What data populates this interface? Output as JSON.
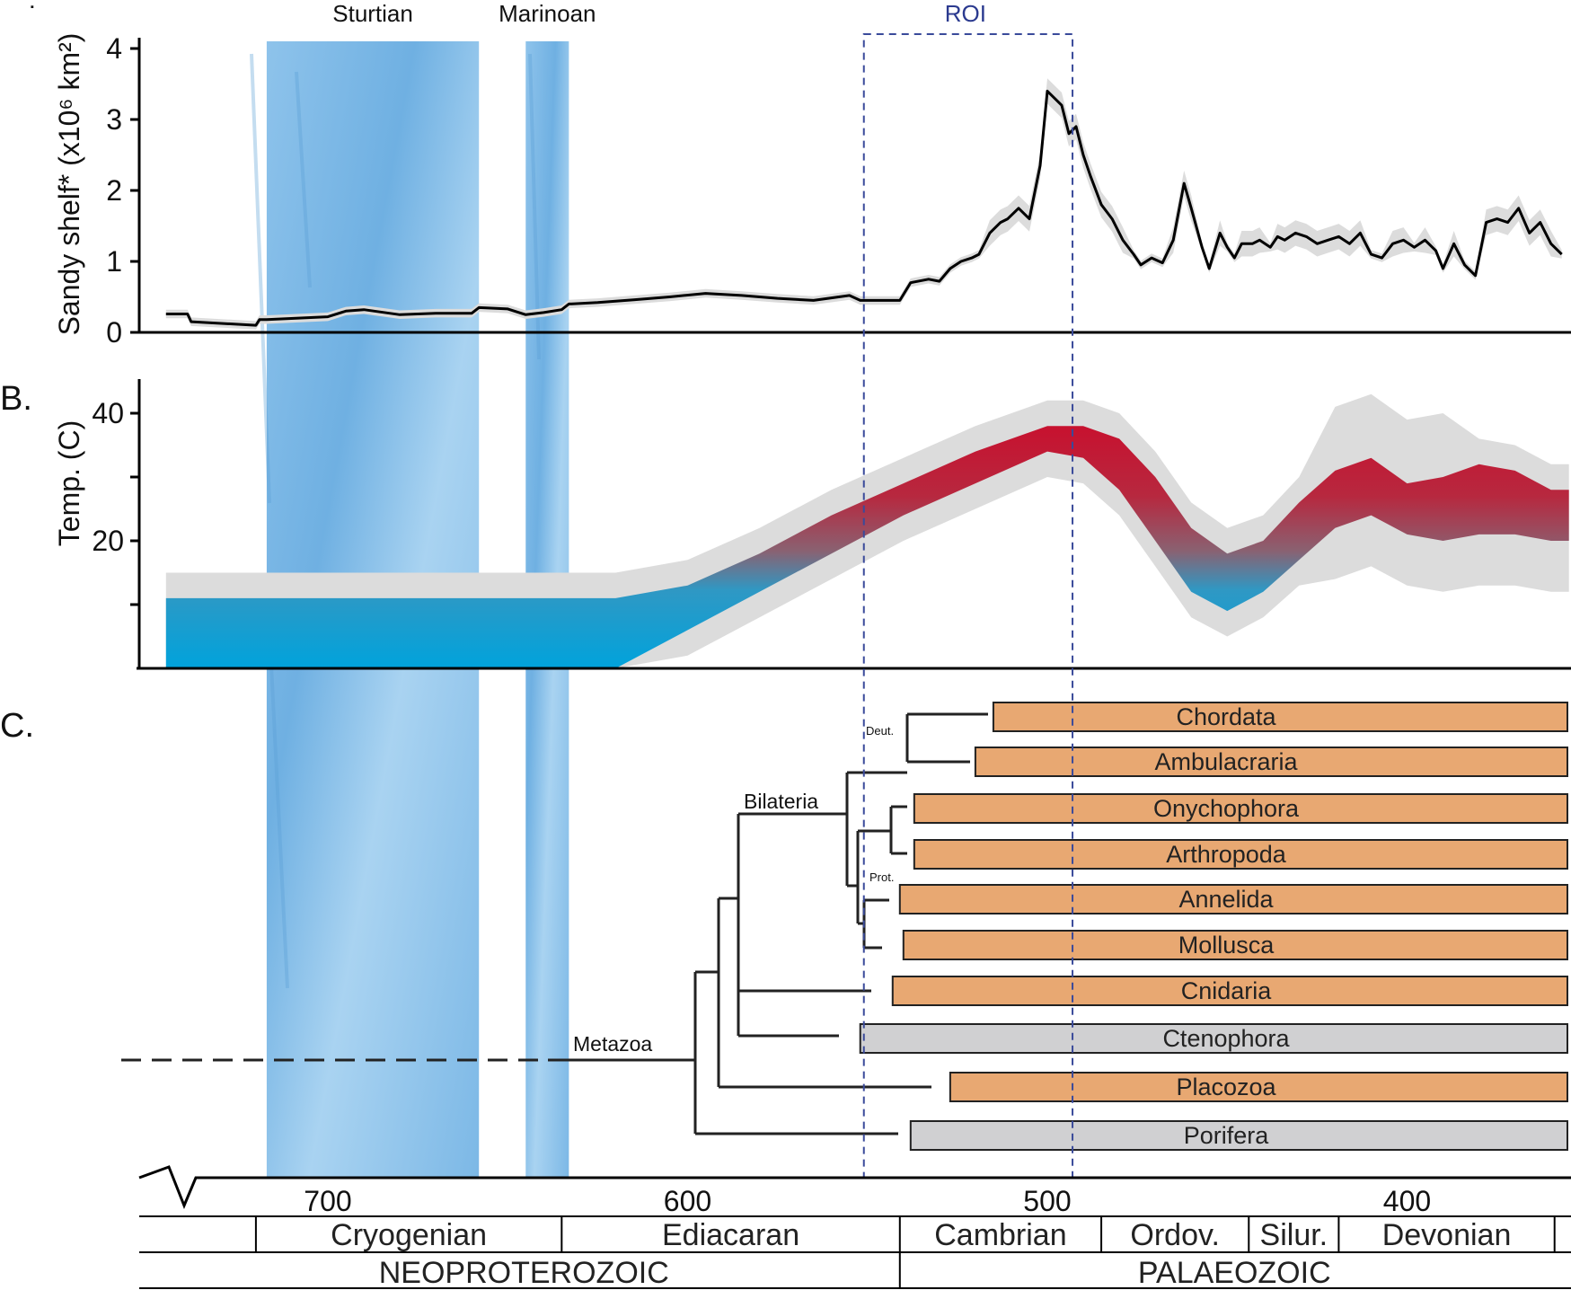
{
  "figure": {
    "stray_mark": "˙",
    "glaciations": [
      {
        "name": "Sturtian",
        "start_ma": 717,
        "end_ma": 658
      },
      {
        "name": "Marinoan",
        "start_ma": 645,
        "end_ma": 633
      }
    ],
    "roi": {
      "label": "ROI",
      "start_ma": 551,
      "end_ma": 493
    }
  },
  "chart_data": [
    {
      "type": "line",
      "panel": "A",
      "ylabel": "Sandy shelf* (x10⁶ km²)",
      "ylim": [
        0,
        4.2
      ],
      "yticks": [
        0,
        1,
        2,
        3,
        4
      ],
      "xlim": [
        745,
        355
      ],
      "series": [
        {
          "x": [
            745,
            739,
            738,
            720,
            719,
            717,
            700,
            695,
            690,
            680,
            670,
            660,
            658,
            650,
            645,
            640,
            635,
            633,
            625,
            615,
            605,
            595,
            585,
            575,
            565,
            555,
            552,
            548,
            541,
            538,
            533,
            530,
            527,
            524,
            521,
            519,
            516,
            513,
            511,
            508,
            505,
            502,
            500,
            498,
            496,
            494,
            492,
            490,
            488,
            485,
            482,
            479,
            476,
            474,
            471,
            468,
            465,
            462,
            460,
            457,
            455,
            452,
            450,
            448,
            446,
            443,
            441,
            438,
            436,
            434,
            431,
            428,
            425,
            422,
            419,
            416,
            413,
            410,
            407,
            404,
            401,
            398,
            395,
            392,
            390,
            387,
            384,
            381,
            378,
            375,
            372,
            369,
            366,
            363,
            360,
            357
          ],
          "values": [
            0.26,
            0.26,
            0.15,
            0.1,
            0.18,
            0.18,
            0.22,
            0.3,
            0.32,
            0.25,
            0.27,
            0.27,
            0.35,
            0.33,
            0.25,
            0.28,
            0.32,
            0.4,
            0.42,
            0.46,
            0.5,
            0.55,
            0.52,
            0.48,
            0.45,
            0.52,
            0.45,
            0.45,
            0.45,
            0.7,
            0.75,
            0.72,
            0.9,
            1.0,
            1.05,
            1.1,
            1.4,
            1.55,
            1.6,
            1.75,
            1.6,
            2.35,
            3.4,
            3.3,
            3.2,
            2.8,
            2.9,
            2.5,
            2.2,
            1.8,
            1.6,
            1.3,
            1.1,
            0.95,
            1.05,
            0.98,
            1.3,
            2.1,
            1.75,
            1.2,
            0.9,
            1.4,
            1.2,
            1.05,
            1.25,
            1.25,
            1.3,
            1.2,
            1.35,
            1.3,
            1.4,
            1.35,
            1.25,
            1.3,
            1.35,
            1.25,
            1.4,
            1.1,
            1.05,
            1.25,
            1.3,
            1.2,
            1.3,
            1.15,
            0.9,
            1.25,
            0.95,
            0.8,
            1.55,
            1.6,
            1.55,
            1.75,
            1.4,
            1.55,
            1.25,
            1.1
          ]
        }
      ],
      "confidence_band": "light grey envelope"
    },
    {
      "type": "area",
      "panel": "B",
      "panel_label": "B.",
      "ylabel": "Temp. (C)",
      "ylim": [
        0,
        46
      ],
      "yticks": [
        10,
        20,
        30,
        40
      ],
      "ytick_labels": [
        "",
        "20",
        "",
        "40"
      ],
      "xlim": [
        745,
        355
      ],
      "series": [
        {
          "x": [
            745,
            720,
            680,
            640,
            620,
            600,
            580,
            560,
            540,
            520,
            500,
            490,
            480,
            470,
            460,
            450,
            440,
            430,
            420,
            410,
            400,
            390,
            380,
            370,
            360,
            355
          ],
          "lower": [
            0,
            0,
            0,
            0,
            0,
            6,
            12,
            18,
            24,
            29,
            34,
            33,
            28,
            20,
            12,
            9,
            12,
            17,
            22,
            24,
            21,
            20,
            21,
            21,
            20,
            20
          ],
          "upper": [
            11,
            11,
            11,
            11,
            11,
            13,
            18,
            24,
            29,
            34,
            38,
            38,
            36,
            30,
            22,
            18,
            20,
            26,
            31,
            33,
            29,
            30,
            32,
            31,
            28,
            28
          ]
        }
      ],
      "confidence_band": "light grey envelope",
      "color_scale": [
        "#00a3dc",
        "#c8102e"
      ]
    },
    {
      "type": "table",
      "panel": "C",
      "panel_label": "C.",
      "clades": [
        "Bilateria",
        "Metazoa",
        "Deut.",
        "Prot."
      ],
      "taxa": [
        {
          "name": "Chordata",
          "first_ma": 515,
          "color": "#e8a872"
        },
        {
          "name": "Ambulacraria",
          "first_ma": 520,
          "color": "#e8a872"
        },
        {
          "name": "Onychophora",
          "first_ma": 537,
          "color": "#e8a872"
        },
        {
          "name": "Arthropoda",
          "first_ma": 537,
          "color": "#e8a872"
        },
        {
          "name": "Annelida",
          "first_ma": 541,
          "color": "#e8a872"
        },
        {
          "name": "Mollusca",
          "first_ma": 540,
          "color": "#e8a872"
        },
        {
          "name": "Cnidaria",
          "first_ma": 543,
          "color": "#e8a872"
        },
        {
          "name": "Ctenophora",
          "first_ma": 552,
          "color": "#d0d0d2"
        },
        {
          "name": "Placozoa",
          "first_ma": 527,
          "color": "#e8a872"
        },
        {
          "name": "Porifera",
          "first_ma": 538,
          "color": "#d0d0d2"
        }
      ]
    }
  ],
  "time_axis": {
    "ticks": [
      "700",
      "600",
      "500",
      "400"
    ],
    "tick_values": [
      700,
      600,
      500,
      400
    ],
    "periods": [
      {
        "name": "Cryogenian",
        "start_ma": 720,
        "end_ma": 635
      },
      {
        "name": "Ediacaran",
        "start_ma": 635,
        "end_ma": 541
      },
      {
        "name": "Cambrian",
        "start_ma": 541,
        "end_ma": 485
      },
      {
        "name": "Ordov.",
        "start_ma": 485,
        "end_ma": 444
      },
      {
        "name": "Silur.",
        "start_ma": 444,
        "end_ma": 419
      },
      {
        "name": "Devonian",
        "start_ma": 419,
        "end_ma": 359
      }
    ],
    "eras": [
      {
        "name": "NEOPROTEROZOIC",
        "start_ma": 750,
        "end_ma": 541
      },
      {
        "name": "PALAEOZOIC",
        "start_ma": 541,
        "end_ma": 355
      }
    ]
  }
}
